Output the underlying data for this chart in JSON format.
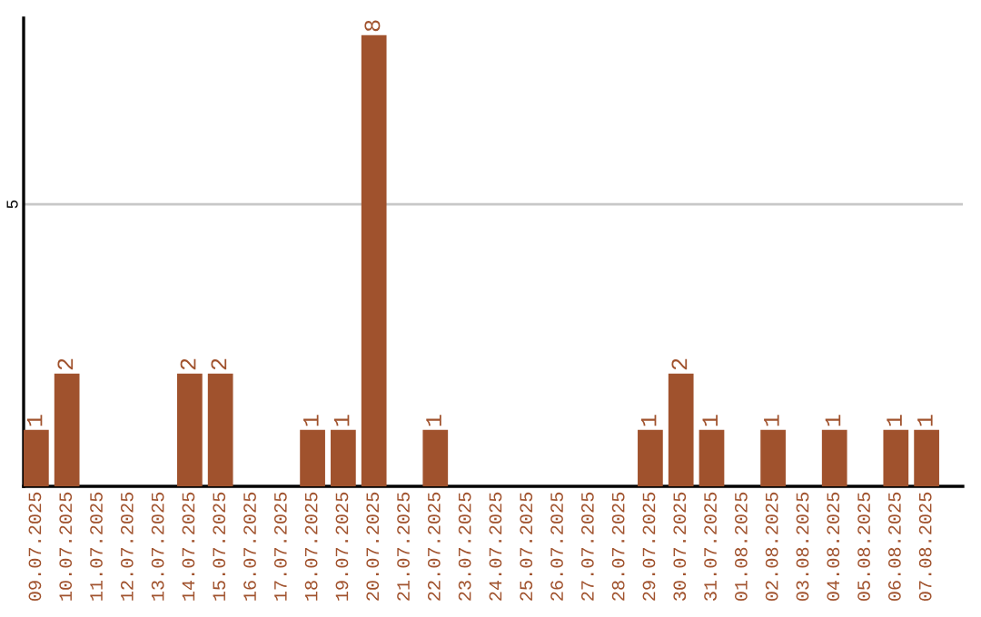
{
  "chart_data": {
    "type": "bar",
    "categories": [
      "09.07.2025",
      "10.07.2025",
      "11.07.2025",
      "12.07.2025",
      "13.07.2025",
      "14.07.2025",
      "15.07.2025",
      "16.07.2025",
      "17.07.2025",
      "18.07.2025",
      "19.07.2025",
      "20.07.2025",
      "21.07.2025",
      "22.07.2025",
      "23.07.2025",
      "24.07.2025",
      "25.07.2025",
      "26.07.2025",
      "27.07.2025",
      "28.07.2025",
      "29.07.2025",
      "30.07.2025",
      "31.07.2025",
      "01.08.2025",
      "02.08.2025",
      "03.08.2025",
      "04.08.2025",
      "05.08.2025",
      "06.08.2025",
      "07.08.2025"
    ],
    "values": [
      1,
      2,
      0,
      0,
      0,
      2,
      2,
      0,
      0,
      1,
      1,
      8,
      0,
      1,
      0,
      0,
      0,
      0,
      0,
      0,
      1,
      2,
      1,
      0,
      1,
      0,
      1,
      0,
      1,
      1
    ],
    "value_labels": [
      "1",
      "2",
      null,
      null,
      null,
      "2",
      "2",
      null,
      null,
      "1",
      "1",
      "8",
      null,
      "1",
      null,
      null,
      null,
      null,
      null,
      null,
      "1",
      "2",
      "1",
      null,
      "1",
      null,
      "1",
      null,
      "1",
      "1"
    ],
    "color": "#a0522d",
    "ylim": [
      0,
      8.3
    ],
    "yticks": [
      5
    ],
    "grid": "y",
    "legend": false
  }
}
